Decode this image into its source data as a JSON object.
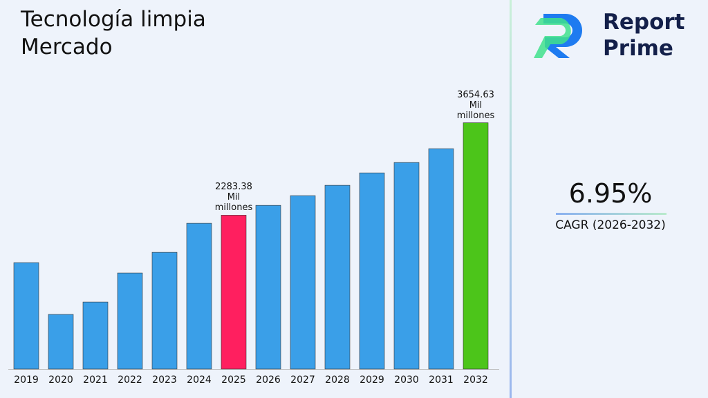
{
  "chart_data": {
    "type": "bar",
    "title": "Tecnología limpia Mercado",
    "categories": [
      "2019",
      "2020",
      "2021",
      "2022",
      "2023",
      "2024",
      "2025",
      "2026",
      "2027",
      "2028",
      "2029",
      "2030",
      "2031",
      "2032"
    ],
    "values": [
      1579,
      810,
      994,
      1425,
      1732,
      2163,
      2283.38,
      2429,
      2573,
      2727,
      2911,
      3065,
      3270,
      3654.63
    ],
    "value_labels": [
      null,
      null,
      null,
      null,
      null,
      null,
      "2283.38 Mil millones",
      null,
      null,
      null,
      null,
      null,
      null,
      "3654.63 Mil millones"
    ],
    "colors": [
      "#3a9fe8",
      "#3a9fe8",
      "#3a9fe8",
      "#3a9fe8",
      "#3a9fe8",
      "#3a9fe8",
      "#ff1f5f",
      "#3a9fe8",
      "#3a9fe8",
      "#3a9fe8",
      "#3a9fe8",
      "#3a9fe8",
      "#3a9fe8",
      "#4cc51a"
    ],
    "ylim": [
      0,
      4000
    ]
  },
  "sidebar": {
    "brand": [
      "Report",
      "Prime"
    ],
    "cagr_value": "6.95%",
    "cagr_label": "CAGR (2026-2032)"
  }
}
